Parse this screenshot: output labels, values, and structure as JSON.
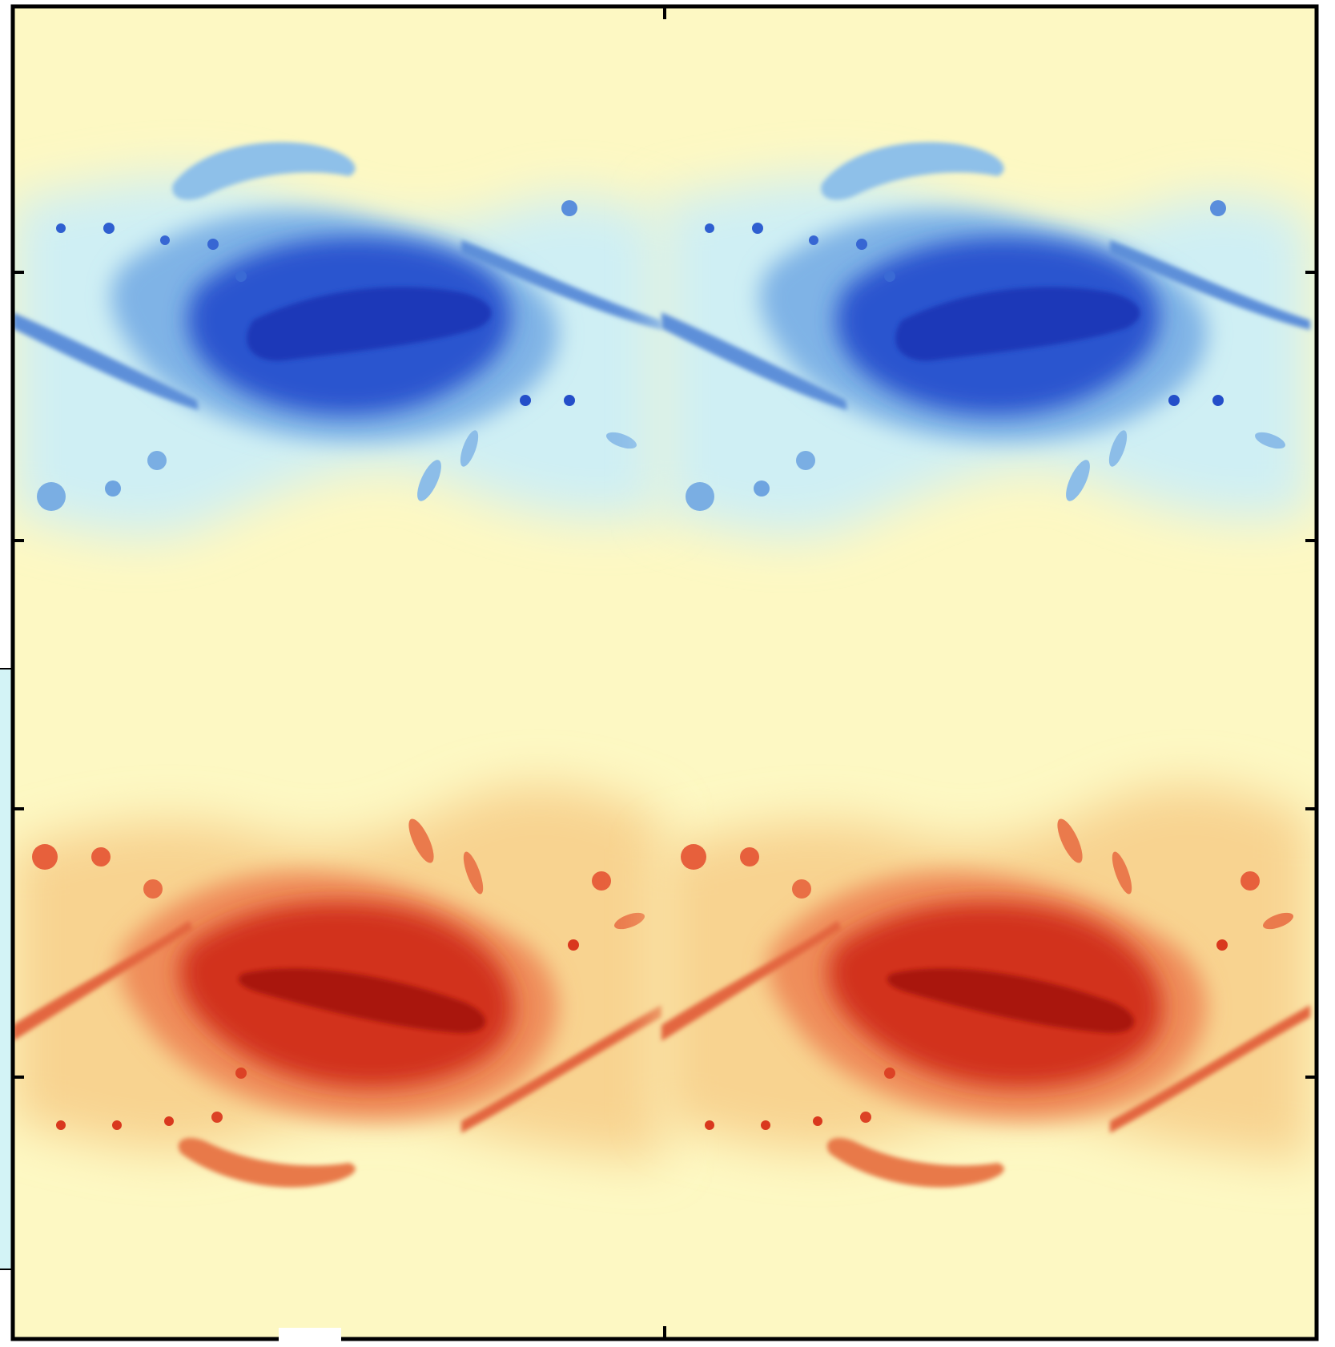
{
  "figure": {
    "type": "colormap",
    "colormap": {
      "negative_dark": "#1f45c9",
      "negative_mid": "#6f9fe0",
      "negative_light": "#c9eff2",
      "neutral": "#fdf8c3",
      "positive_light": "#f8d08a",
      "positive_mid": "#ea6a43",
      "positive_dark": "#b9180f"
    },
    "frame_color": "#000000",
    "left_strip_color": "#d3f3f6",
    "features": [
      {
        "name": "blue-vortex-band",
        "sign": "negative",
        "repeats": 2
      },
      {
        "name": "red-vortex-band",
        "sign": "positive",
        "repeats": 2
      }
    ],
    "tick_marks": {
      "x_top": 1,
      "x_bottom": 1,
      "y_left": 5,
      "y_right": 5
    }
  }
}
